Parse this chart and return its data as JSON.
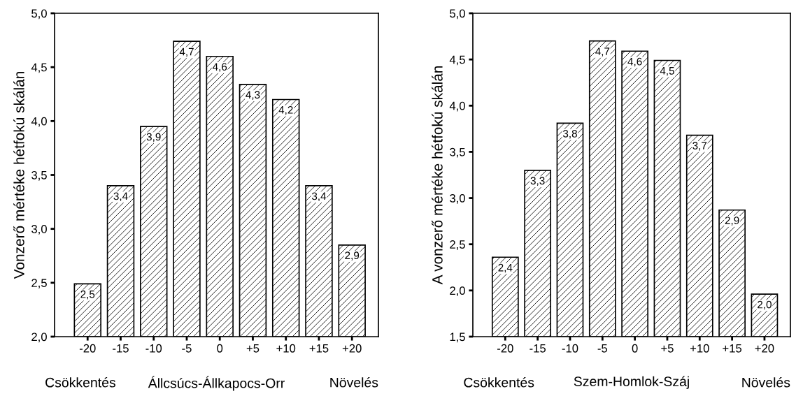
{
  "chart_data": [
    {
      "type": "bar",
      "ylabel": "Vonzerő mértéke hétfokú skálán",
      "xlabel": "Állcsúcs-Állkapocs-Orr",
      "annotations": [
        "Csökkentés",
        "Növelés"
      ],
      "categories": [
        "-20",
        "-15",
        "-10",
        "-5",
        "0",
        "+5",
        "+10",
        "+15",
        "+20"
      ],
      "values": [
        2.49,
        3.4,
        3.95,
        4.74,
        4.6,
        4.34,
        4.2,
        3.4,
        2.85
      ],
      "value_labels": [
        "2,5",
        "3,4",
        "3,9",
        "4,7",
        "4,6",
        "4,3",
        "4,2",
        "3,4",
        "2,9"
      ],
      "color": "#000000",
      "ylim": [
        2.0,
        5.0
      ],
      "yticks": [
        {
          "value": 2.0,
          "label": "2,0"
        },
        {
          "value": 2.5,
          "label": "2,5"
        },
        {
          "value": 3.0,
          "label": "3,0"
        },
        {
          "value": 3.5,
          "label": "3,5"
        },
        {
          "value": 4.0,
          "label": "4,0"
        },
        {
          "value": 4.5,
          "label": "4,5"
        },
        {
          "value": 5.0,
          "label": "5,0"
        }
      ],
      "grid": false
    },
    {
      "type": "bar",
      "ylabel": "A vonzerő mértéke hétfokú skálán",
      "xlabel": "Szem-Homlok-Száj",
      "annotations": [
        "Csökkentés",
        "Növelés"
      ],
      "categories": [
        "-20",
        "-15",
        "-10",
        "-5",
        "0",
        "+5",
        "+10",
        "+15",
        "+20"
      ],
      "values": [
        2.36,
        3.3,
        3.81,
        4.7,
        4.59,
        4.49,
        3.68,
        2.87,
        1.96
      ],
      "value_labels": [
        "2,4",
        "3,3",
        "3,8",
        "4,7",
        "4,6",
        "4,5",
        "3,7",
        "2,9",
        "2,0"
      ],
      "color": "#000000",
      "ylim": [
        1.5,
        5.0
      ],
      "yticks": [
        {
          "value": 1.5,
          "label": "1,5"
        },
        {
          "value": 2.0,
          "label": "2,0"
        },
        {
          "value": 2.5,
          "label": "2,5"
        },
        {
          "value": 3.0,
          "label": "3,0"
        },
        {
          "value": 3.5,
          "label": "3,5"
        },
        {
          "value": 4.0,
          "label": "4,0"
        },
        {
          "value": 4.5,
          "label": "4,5"
        },
        {
          "value": 5.0,
          "label": "5,0"
        }
      ],
      "grid": false
    }
  ]
}
